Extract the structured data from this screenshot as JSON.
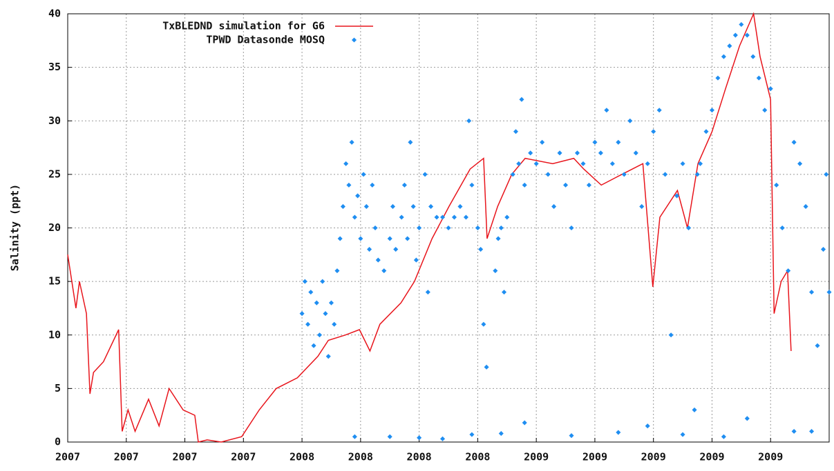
{
  "chart_data": {
    "type": "line-scatter",
    "ylabel": "Salinity (ppt)",
    "xlim": [
      0,
      13
    ],
    "ylim": [
      0,
      40
    ],
    "xticks": [
      {
        "value": 0,
        "label": "2007"
      },
      {
        "value": 1,
        "label": "2007"
      },
      {
        "value": 2,
        "label": "2007"
      },
      {
        "value": 3,
        "label": "2007"
      },
      {
        "value": 4,
        "label": "2008"
      },
      {
        "value": 5,
        "label": "2008"
      },
      {
        "value": 6,
        "label": "2008"
      },
      {
        "value": 7,
        "label": "2008"
      },
      {
        "value": 8,
        "label": "2009"
      },
      {
        "value": 9,
        "label": "2009"
      },
      {
        "value": 10,
        "label": "2009"
      },
      {
        "value": 11,
        "label": "2009"
      },
      {
        "value": 12,
        "label": "2009"
      }
    ],
    "yticks": [
      0,
      5,
      10,
      15,
      20,
      25,
      30,
      35,
      40
    ],
    "grid": true,
    "legend": "top-left",
    "series": [
      {
        "name": "TxBLEDND simulation for G6",
        "color": "#e8141b",
        "type": "line",
        "x": [
          0,
          0.14,
          0.2,
          0.32,
          0.38,
          0.44,
          0.61,
          0.87,
          0.93,
          1.03,
          1.15,
          1.38,
          1.56,
          1.73,
          1.97,
          2.17,
          2.23,
          2.38,
          2.62,
          2.97,
          3.27,
          3.56,
          3.92,
          4.27,
          4.45,
          4.74,
          4.98,
          5.16,
          5.33,
          5.69,
          5.92,
          6.22,
          6.51,
          6.87,
          7.1,
          7.16,
          7.34,
          7.58,
          7.81,
          8.28,
          8.64,
          8.81,
          9.11,
          9.46,
          9.82,
          9.99,
          10.11,
          10.41,
          10.58,
          10.76,
          11.0,
          11.23,
          11.47,
          11.71,
          11.82,
          12.0,
          12.06,
          12.18,
          12.29,
          12.35
        ],
        "values": [
          17.5,
          12.5,
          15,
          12,
          4.5,
          6.5,
          7.5,
          10.5,
          1,
          3,
          1,
          4,
          1.5,
          5,
          3,
          2.5,
          0,
          0.2,
          0,
          0.5,
          3,
          5,
          6,
          8,
          9.5,
          10,
          10.5,
          8.5,
          11,
          13,
          15,
          19,
          22,
          25.5,
          26.5,
          19,
          22,
          25,
          26.5,
          26,
          26.5,
          25.5,
          24,
          25,
          26,
          14.5,
          21,
          23.5,
          20,
          26,
          29,
          33,
          37,
          40,
          36,
          32,
          12,
          15,
          16,
          8.5
        ]
      },
      {
        "name": "TPWD Datasonde MOSQ",
        "color": "#1f8ef1",
        "type": "scatter",
        "x": [
          4.0,
          4.05,
          4.1,
          4.15,
          4.2,
          4.25,
          4.3,
          4.35,
          4.4,
          4.45,
          4.5,
          4.55,
          4.6,
          4.65,
          4.7,
          4.75,
          4.8,
          4.85,
          4.9,
          4.95,
          5.0,
          5.05,
          5.1,
          5.15,
          5.2,
          5.25,
          5.3,
          5.4,
          5.5,
          5.55,
          5.6,
          5.7,
          5.75,
          5.8,
          5.85,
          5.9,
          5.95,
          6.0,
          6.1,
          6.15,
          6.2,
          6.3,
          6.4,
          6.5,
          6.6,
          6.7,
          6.8,
          6.85,
          6.9,
          7.0,
          7.05,
          7.1,
          7.15,
          7.3,
          7.35,
          7.4,
          7.45,
          7.5,
          7.6,
          7.65,
          7.7,
          7.75,
          7.8,
          7.9,
          8.0,
          8.1,
          8.2,
          8.3,
          8.4,
          8.5,
          8.6,
          8.7,
          8.8,
          8.9,
          9.0,
          9.1,
          9.2,
          9.3,
          9.4,
          9.5,
          9.6,
          9.7,
          9.8,
          9.9,
          10.0,
          10.1,
          10.2,
          10.3,
          10.4,
          10.5,
          10.6,
          10.7,
          10.75,
          10.8,
          10.9,
          11.0,
          11.1,
          11.2,
          11.3,
          11.4,
          11.5,
          11.6,
          11.7,
          11.8,
          11.9,
          12.0,
          12.1,
          12.2,
          12.3,
          12.4,
          12.5,
          12.6,
          12.7,
          12.8,
          12.9,
          12.95,
          13.0,
          4.9,
          5.5,
          6.0,
          6.4,
          6.9,
          7.4,
          7.8,
          8.6,
          9.4,
          9.9,
          10.5,
          11.2,
          11.6,
          12.4,
          12.7
        ],
        "values": [
          12,
          15,
          11,
          14,
          9,
          13,
          10,
          15,
          12,
          8,
          13,
          11,
          16,
          19,
          22,
          26,
          24,
          28,
          21,
          23,
          19,
          25,
          22,
          18,
          24,
          20,
          17,
          16,
          19,
          22,
          18,
          21,
          24,
          19,
          28,
          22,
          17,
          20,
          25,
          14,
          22,
          21,
          21,
          20,
          21,
          22,
          21,
          30,
          24,
          20,
          18,
          11,
          7,
          16,
          19,
          20,
          14,
          21,
          25,
          29,
          26,
          32,
          24,
          27,
          26,
          28,
          25,
          22,
          27,
          24,
          20,
          27,
          26,
          24,
          28,
          27,
          31,
          26,
          28,
          25,
          30,
          27,
          22,
          26,
          29,
          31,
          25,
          10,
          23,
          26,
          20,
          3,
          25,
          26,
          29,
          31,
          34,
          36,
          37,
          38,
          39,
          38,
          36,
          34,
          31,
          33,
          24,
          20,
          16,
          28,
          26,
          22,
          14,
          9,
          18,
          25,
          14,
          0.5,
          0.5,
          0.4,
          0.3,
          0.7,
          0.8,
          1.8,
          0.6,
          0.9,
          1.5,
          0.7,
          0.5,
          2.2,
          1.0,
          1.0
        ]
      }
    ]
  }
}
